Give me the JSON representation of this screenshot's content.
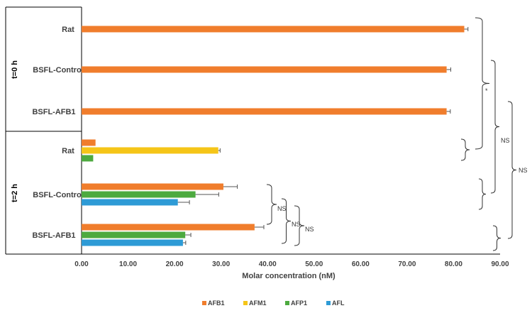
{
  "chart_data": {
    "type": "bar",
    "orientation": "horizontal",
    "xlabel": "Molar concentration (nM)",
    "xlim": [
      0,
      90
    ],
    "x_ticks": [
      "0.00",
      "10.00",
      "20.00",
      "30.00",
      "40.00",
      "50.00",
      "60.00",
      "70.00",
      "80.00",
      "90.00"
    ],
    "grid": false,
    "legend_position": "bottom",
    "groups": [
      {
        "label": "t=0 h",
        "categories": [
          "Rat",
          "BSFL-Control",
          "BSFL-AFB1"
        ]
      },
      {
        "label": "t=2 h",
        "categories": [
          "Rat",
          "BSFL-Control",
          "BSFL-AFB1"
        ]
      }
    ],
    "series": [
      {
        "name": "AFB1",
        "color": "#F07D2C",
        "values": [
          82.3,
          78.5,
          78.5,
          3.0,
          30.5,
          37.2
        ],
        "errors": [
          0.8,
          0.9,
          0.8,
          0.0,
          3.0,
          2.0
        ]
      },
      {
        "name": "AFM1",
        "color": "#F5C518",
        "values": [
          null,
          null,
          null,
          29.4,
          null,
          null
        ],
        "errors": [
          null,
          null,
          null,
          0.4,
          null,
          null
        ]
      },
      {
        "name": "AFP1",
        "color": "#4DAA3F",
        "values": [
          null,
          null,
          null,
          2.5,
          24.5,
          22.3
        ],
        "errors": [
          null,
          null,
          null,
          0.0,
          5.0,
          1.2
        ]
      },
      {
        "name": "AFL",
        "color": "#2E9BD6",
        "values": [
          null,
          null,
          null,
          null,
          20.7,
          21.8
        ],
        "errors": [
          null,
          null,
          null,
          null,
          2.5,
          0.6
        ]
      }
    ],
    "annotations": [
      "*",
      "NS",
      "NS",
      "NS",
      "NS",
      "NS"
    ]
  }
}
